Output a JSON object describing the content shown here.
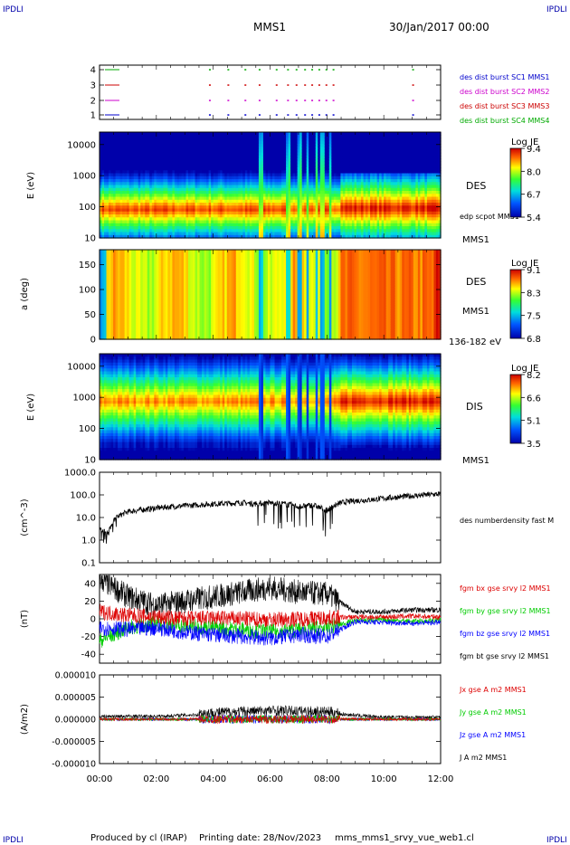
{
  "header": {
    "left_tag": "IPDLI",
    "right_tag": "IPDLI",
    "center_title": "MMS1",
    "date_title": "30/Jan/2017 00:00"
  },
  "footer": {
    "left_tag": "IPDLI",
    "right_tag": "IPDLI",
    "produced_by": "Produced by cl (IRAP)",
    "printing_date": "Printing date: 28/Nov/2023",
    "script_name": "mms_mms1_srvy_vue_web1.cl"
  },
  "colors": {
    "sc1": "#0000cc",
    "sc2": "#cc00cc",
    "sc3": "#cc0000",
    "sc4": "#00aa00",
    "bx": "#dd0000",
    "by": "#00cc00",
    "bz": "#0000ff",
    "bt": "#000000"
  },
  "chart_data": [
    {
      "type": "scatter",
      "panel": "burst-availability",
      "yticks": [
        "1",
        "2",
        "3",
        "4"
      ],
      "legend": [
        "des dist burst SC1 MMS1",
        "des dist burst SC2 MMS2",
        "des dist burst SC3 MMS3",
        "des dist burst SC4 MMS4"
      ],
      "x_range_hours": [
        0,
        12
      ],
      "burst_times_hours": [
        3.85,
        4.5,
        5.1,
        5.6,
        6.2,
        6.6,
        6.9,
        7.2,
        7.45,
        7.7,
        7.95,
        8.2,
        11.0
      ]
    },
    {
      "type": "heatmap",
      "panel": "des-energy-spectrogram",
      "ylabel": "E (eV)",
      "yticks": [
        "10",
        "100",
        "1000",
        "10000"
      ],
      "side_label": "DES",
      "overlay_label": "edp scpot MMS1",
      "sc_label": "MMS1",
      "colorbar": {
        "title": "Log JE",
        "ticks": [
          "9.4",
          "8.0",
          "6.7",
          "5.4"
        ]
      }
    },
    {
      "type": "heatmap",
      "panel": "des-pitch-angle",
      "ylabel": "a (deg)",
      "yticks": [
        "0",
        "50",
        "100",
        "150"
      ],
      "side_label": "DES",
      "sc_label": "MMS1",
      "energy_label": "136-182 eV",
      "colorbar": {
        "title": "Log JE",
        "ticks": [
          "9.1",
          "8.3",
          "7.5",
          "6.8"
        ]
      }
    },
    {
      "type": "heatmap",
      "panel": "dis-energy-spectrogram",
      "ylabel": "E (eV)",
      "yticks": [
        "10",
        "100",
        "1000",
        "10000"
      ],
      "side_label": "DIS",
      "sc_label": "MMS1",
      "colorbar": {
        "title": "Log JE",
        "ticks": [
          "8.2",
          "6.6",
          "5.1",
          "3.5"
        ]
      }
    },
    {
      "type": "line",
      "panel": "number-density",
      "ylabel": "(cm^-3)",
      "yticks": [
        "0.1",
        "1.0",
        "10.0",
        "100.0",
        "1000.0"
      ],
      "scale": "log",
      "series": [
        {
          "name": "des numberdensity fast M",
          "x_hours": [
            0,
            0.3,
            0.6,
            1.0,
            1.5,
            2.0,
            2.5,
            3.0,
            3.5,
            4.0,
            4.5,
            5.0,
            5.5,
            6.0,
            6.5,
            7.0,
            7.5,
            8.0,
            8.5,
            9.0,
            9.5,
            10.0,
            10.5,
            11.0,
            11.5,
            12.0
          ],
          "values": [
            3.0,
            2.0,
            10.0,
            18.0,
            22.0,
            26.0,
            30.0,
            33.0,
            36.0,
            40.0,
            42.0,
            45.0,
            40.0,
            45.0,
            40.0,
            30.0,
            35.0,
            20.0,
            45.0,
            55.0,
            60.0,
            70.0,
            80.0,
            90.0,
            100.0,
            110.0
          ]
        }
      ]
    },
    {
      "type": "line",
      "panel": "magnetic-field",
      "ylabel": "(nT)",
      "yticks": [
        "-40",
        "-20",
        "0",
        "20",
        "40"
      ],
      "ylim": [
        -50,
        50
      ],
      "series": [
        {
          "name": "fgm bx gse srvy l2 MMS1",
          "x_hours": [
            0,
            1,
            2,
            3,
            4,
            5,
            6,
            7,
            8,
            9,
            10,
            11,
            12
          ],
          "values": [
            8,
            4,
            2,
            0,
            1,
            0,
            -1,
            0,
            1,
            2,
            2,
            3,
            2
          ]
        },
        {
          "name": "fgm by gse srvy l2 MMS1",
          "x_hours": [
            0,
            1,
            2,
            3,
            4,
            5,
            6,
            7,
            8,
            9,
            10,
            11,
            12
          ],
          "values": [
            -25,
            -10,
            -5,
            -8,
            -10,
            -12,
            -15,
            -12,
            -10,
            -2,
            -1,
            -3,
            -2
          ]
        },
        {
          "name": "fgm bz gse srvy l2 MMS1",
          "x_hours": [
            0,
            1,
            2,
            3,
            4,
            5,
            6,
            7,
            8,
            9,
            10,
            11,
            12
          ],
          "values": [
            -10,
            -12,
            -10,
            -15,
            -18,
            -20,
            -22,
            -18,
            -20,
            -3,
            -4,
            -5,
            -4
          ]
        },
        {
          "name": "fgm bt gse srvy l2 MMS1",
          "x_hours": [
            0,
            1,
            2,
            3,
            4,
            5,
            6,
            7,
            8,
            9,
            10,
            11,
            12
          ],
          "values": [
            45,
            25,
            15,
            20,
            25,
            30,
            35,
            30,
            28,
            8,
            8,
            10,
            10
          ]
        }
      ]
    },
    {
      "type": "line",
      "panel": "current-density",
      "ylabel": "(A/m2)",
      "yticks": [
        "-0.000010",
        "-0.000005",
        "0.000000",
        "0.000005",
        "0.000010"
      ],
      "ylim": [
        -1e-05,
        1e-05
      ],
      "series": [
        {
          "name": "Jx gse A m2 MMS1",
          "x_hours": [
            0,
            2,
            4,
            6,
            8,
            10,
            12
          ],
          "values": [
            0,
            0,
            0,
            0,
            0,
            0,
            0
          ]
        },
        {
          "name": "Jy gse A m2 MMS1",
          "x_hours": [
            0,
            2,
            4,
            6,
            8,
            10,
            12
          ],
          "values": [
            0,
            0,
            0,
            0,
            0,
            0,
            0
          ]
        },
        {
          "name": "Jz gse A m2 MMS1",
          "x_hours": [
            0,
            2,
            4,
            6,
            8,
            10,
            12
          ],
          "values": [
            0,
            0,
            0,
            0,
            0,
            0,
            0
          ]
        },
        {
          "name": "J A m2 MMS1",
          "x_hours": [
            0,
            2,
            4,
            6,
            8,
            10,
            12
          ],
          "values": [
            5e-07,
            5e-07,
            1e-06,
            1.5e-06,
            1.2e-06,
            3e-07,
            3e-07
          ]
        }
      ]
    }
  ],
  "time_axis": {
    "ticks": [
      "00:00",
      "02:00",
      "04:00",
      "06:00",
      "08:00",
      "10:00",
      "12:00"
    ]
  }
}
